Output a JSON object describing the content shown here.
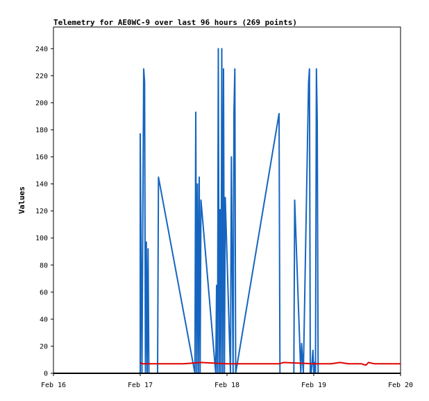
{
  "chart_data": {
    "type": "line",
    "title": "Telemetry for AE0WC-9 over last 96 hours (269 points)",
    "xlabel": "",
    "ylabel": "Values",
    "x_ticks": [
      "Feb 16",
      "Feb 17",
      "Feb 18",
      "Feb 19",
      "Feb 20"
    ],
    "y_ticks": [
      0,
      20,
      40,
      60,
      80,
      100,
      120,
      140,
      160,
      180,
      200,
      220,
      240
    ],
    "xlim": [
      0,
      4
    ],
    "ylim": [
      0,
      256
    ],
    "grid": false,
    "legend": "none",
    "series": [
      {
        "color": "#1565c0",
        "x": [
          1.0,
          1.0,
          1.02,
          1.04,
          1.05,
          1.06,
          1.07,
          1.08,
          1.09,
          1.1,
          1.12,
          1.13,
          1.2,
          1.21,
          1.63,
          1.64,
          1.65,
          1.66,
          1.67,
          1.68,
          1.69,
          1.7,
          1.87,
          1.88,
          1.89,
          1.9,
          1.91,
          1.92,
          1.93,
          1.94,
          1.95,
          1.96,
          1.97,
          1.98,
          2.04,
          2.05,
          2.07,
          2.08,
          2.09,
          2.1,
          2.6,
          2.61,
          2.77,
          2.78,
          2.85,
          2.86,
          2.88,
          2.94,
          2.95,
          2.96,
          2.97,
          2.99,
          3.0,
          3.01,
          3.02,
          3.03,
          3.04,
          3.05,
          3.06
        ],
        "y": [
          0,
          177,
          0,
          225,
          215,
          0,
          97,
          0,
          92,
          0,
          0,
          0,
          0,
          145,
          0,
          193,
          0,
          140,
          0,
          145,
          0,
          128,
          0,
          65,
          0,
          240,
          0,
          121,
          0,
          240,
          0,
          225,
          0,
          130,
          0,
          160,
          0,
          193,
          225,
          0,
          192,
          0,
          0,
          128,
          0,
          22,
          0,
          215,
          225,
          0,
          0,
          17,
          0,
          8,
          0,
          225,
          187,
          0,
          0
        ]
      },
      {
        "color": "#e00000",
        "x": [
          1.0,
          1.02,
          1.5,
          1.7,
          2.0,
          2.5,
          2.6,
          2.65,
          3.0,
          3.2,
          3.3,
          3.4,
          3.55,
          3.6,
          3.63,
          3.7,
          4.0
        ],
        "y": [
          8,
          7,
          7,
          8,
          7,
          7,
          7,
          8,
          7,
          7,
          8,
          7,
          7,
          6,
          8,
          7,
          7
        ]
      },
      {
        "color": "#000000",
        "x": [
          0,
          4
        ],
        "y": [
          0,
          0
        ]
      }
    ]
  }
}
